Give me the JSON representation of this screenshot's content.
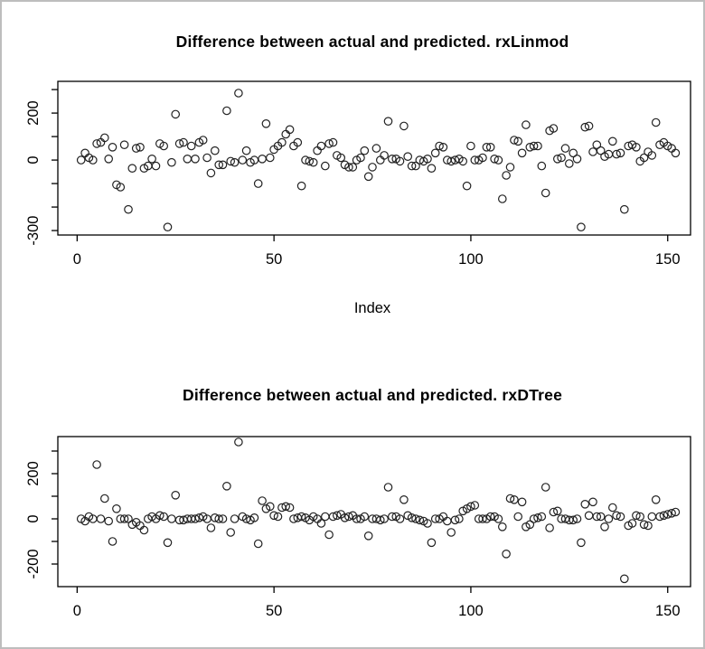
{
  "page": {
    "frame_border_color": "#bdbdbd",
    "background_color": "#ffffff",
    "axis_color": "#000000",
    "marker_color": "#222222",
    "marker_glyph": "open-circle"
  },
  "chart_data": [
    {
      "type": "scatter",
      "title": "Difference between actual and predicted. rxLinmod",
      "xlabel": "Index",
      "ylabel": "",
      "legend": "none",
      "grid": false,
      "xlim": [
        -4.9,
        155.8
      ],
      "ylim": [
        -319,
        335
      ],
      "xticks": [
        {
          "v": 0,
          "label": "0"
        },
        {
          "v": 50,
          "label": "50"
        },
        {
          "v": 100,
          "label": "100"
        },
        {
          "v": 150,
          "label": "150"
        }
      ],
      "yticks": [
        {
          "v": 300,
          "label": ""
        },
        {
          "v": 200,
          "label": "200"
        },
        {
          "v": 100,
          "label": ""
        },
        {
          "v": 0,
          "label": "0"
        },
        {
          "v": -100,
          "label": ""
        },
        {
          "v": -200,
          "label": ""
        },
        {
          "v": -300,
          "label": "-300"
        }
      ],
      "x_start": 1,
      "x_step": 1,
      "n_points": 152,
      "y": [
        0,
        30,
        10,
        0,
        70,
        75,
        95,
        5,
        55,
        -105,
        -115,
        65,
        -210,
        -35,
        50,
        55,
        -35,
        -25,
        5,
        -25,
        70,
        60,
        -285,
        -10,
        195,
        70,
        75,
        5,
        60,
        5,
        75,
        85,
        10,
        -55,
        40,
        -20,
        -20,
        210,
        -5,
        -10,
        285,
        0,
        40,
        -10,
        0,
        -100,
        5,
        155,
        10,
        45,
        60,
        75,
        110,
        130,
        60,
        75,
        -110,
        0,
        -5,
        -10,
        40,
        60,
        -25,
        70,
        75,
        20,
        10,
        -20,
        -30,
        -30,
        0,
        10,
        40,
        -70,
        -30,
        50,
        0,
        20,
        165,
        5,
        5,
        -5,
        145,
        15,
        -25,
        -25,
        0,
        -5,
        5,
        -35,
        30,
        60,
        55,
        0,
        -5,
        0,
        5,
        -5,
        -110,
        60,
        0,
        0,
        10,
        55,
        55,
        5,
        0,
        -165,
        -65,
        -30,
        85,
        80,
        30,
        150,
        55,
        60,
        60,
        -25,
        -140,
        125,
        135,
        5,
        10,
        50,
        -15,
        30,
        5,
        -285,
        140,
        145,
        35,
        65,
        40,
        15,
        25,
        80,
        25,
        30,
        -210,
        60,
        65,
        55,
        -5,
        10,
        35,
        20,
        160,
        65,
        75,
        60,
        50,
        30
      ]
    },
    {
      "type": "scatter",
      "title": "Difference between actual and predicted. rxDTree",
      "xlabel": "",
      "ylabel": "",
      "legend": "none",
      "grid": false,
      "xlim": [
        -4.9,
        155.8
      ],
      "ylim": [
        -300,
        364
      ],
      "xticks": [
        {
          "v": 0,
          "label": "0"
        },
        {
          "v": 50,
          "label": "50"
        },
        {
          "v": 100,
          "label": "100"
        },
        {
          "v": 150,
          "label": "150"
        }
      ],
      "yticks": [
        {
          "v": 300,
          "label": ""
        },
        {
          "v": 200,
          "label": "200"
        },
        {
          "v": 100,
          "label": ""
        },
        {
          "v": 0,
          "label": "0"
        },
        {
          "v": -100,
          "label": ""
        },
        {
          "v": -200,
          "label": "-200"
        }
      ],
      "x_start": 1,
      "x_step": 1,
      "n_points": 152,
      "y": [
        0,
        -10,
        10,
        0,
        240,
        0,
        90,
        -10,
        -100,
        45,
        0,
        0,
        0,
        -25,
        -15,
        -30,
        -50,
        0,
        10,
        0,
        15,
        10,
        -105,
        0,
        105,
        -5,
        -5,
        0,
        0,
        0,
        5,
        10,
        0,
        -40,
        5,
        0,
        0,
        145,
        -60,
        0,
        340,
        10,
        0,
        -5,
        5,
        -110,
        80,
        45,
        55,
        15,
        10,
        50,
        55,
        50,
        0,
        5,
        10,
        5,
        -5,
        10,
        0,
        -20,
        10,
        -70,
        10,
        15,
        20,
        5,
        10,
        15,
        0,
        0,
        10,
        -75,
        0,
        0,
        -5,
        0,
        140,
        10,
        10,
        0,
        85,
        15,
        5,
        0,
        -5,
        -10,
        -20,
        -105,
        0,
        0,
        10,
        -10,
        -60,
        -5,
        0,
        35,
        45,
        55,
        60,
        0,
        0,
        0,
        10,
        10,
        0,
        -35,
        -155,
        90,
        85,
        10,
        75,
        -35,
        -25,
        0,
        5,
        10,
        140,
        -40,
        30,
        35,
        0,
        0,
        -5,
        -5,
        0,
        -105,
        65,
        15,
        75,
        10,
        10,
        -35,
        0,
        50,
        15,
        10,
        -265,
        -30,
        -20,
        15,
        10,
        -25,
        -30,
        10,
        85,
        10,
        15,
        20,
        25,
        30
      ]
    }
  ]
}
